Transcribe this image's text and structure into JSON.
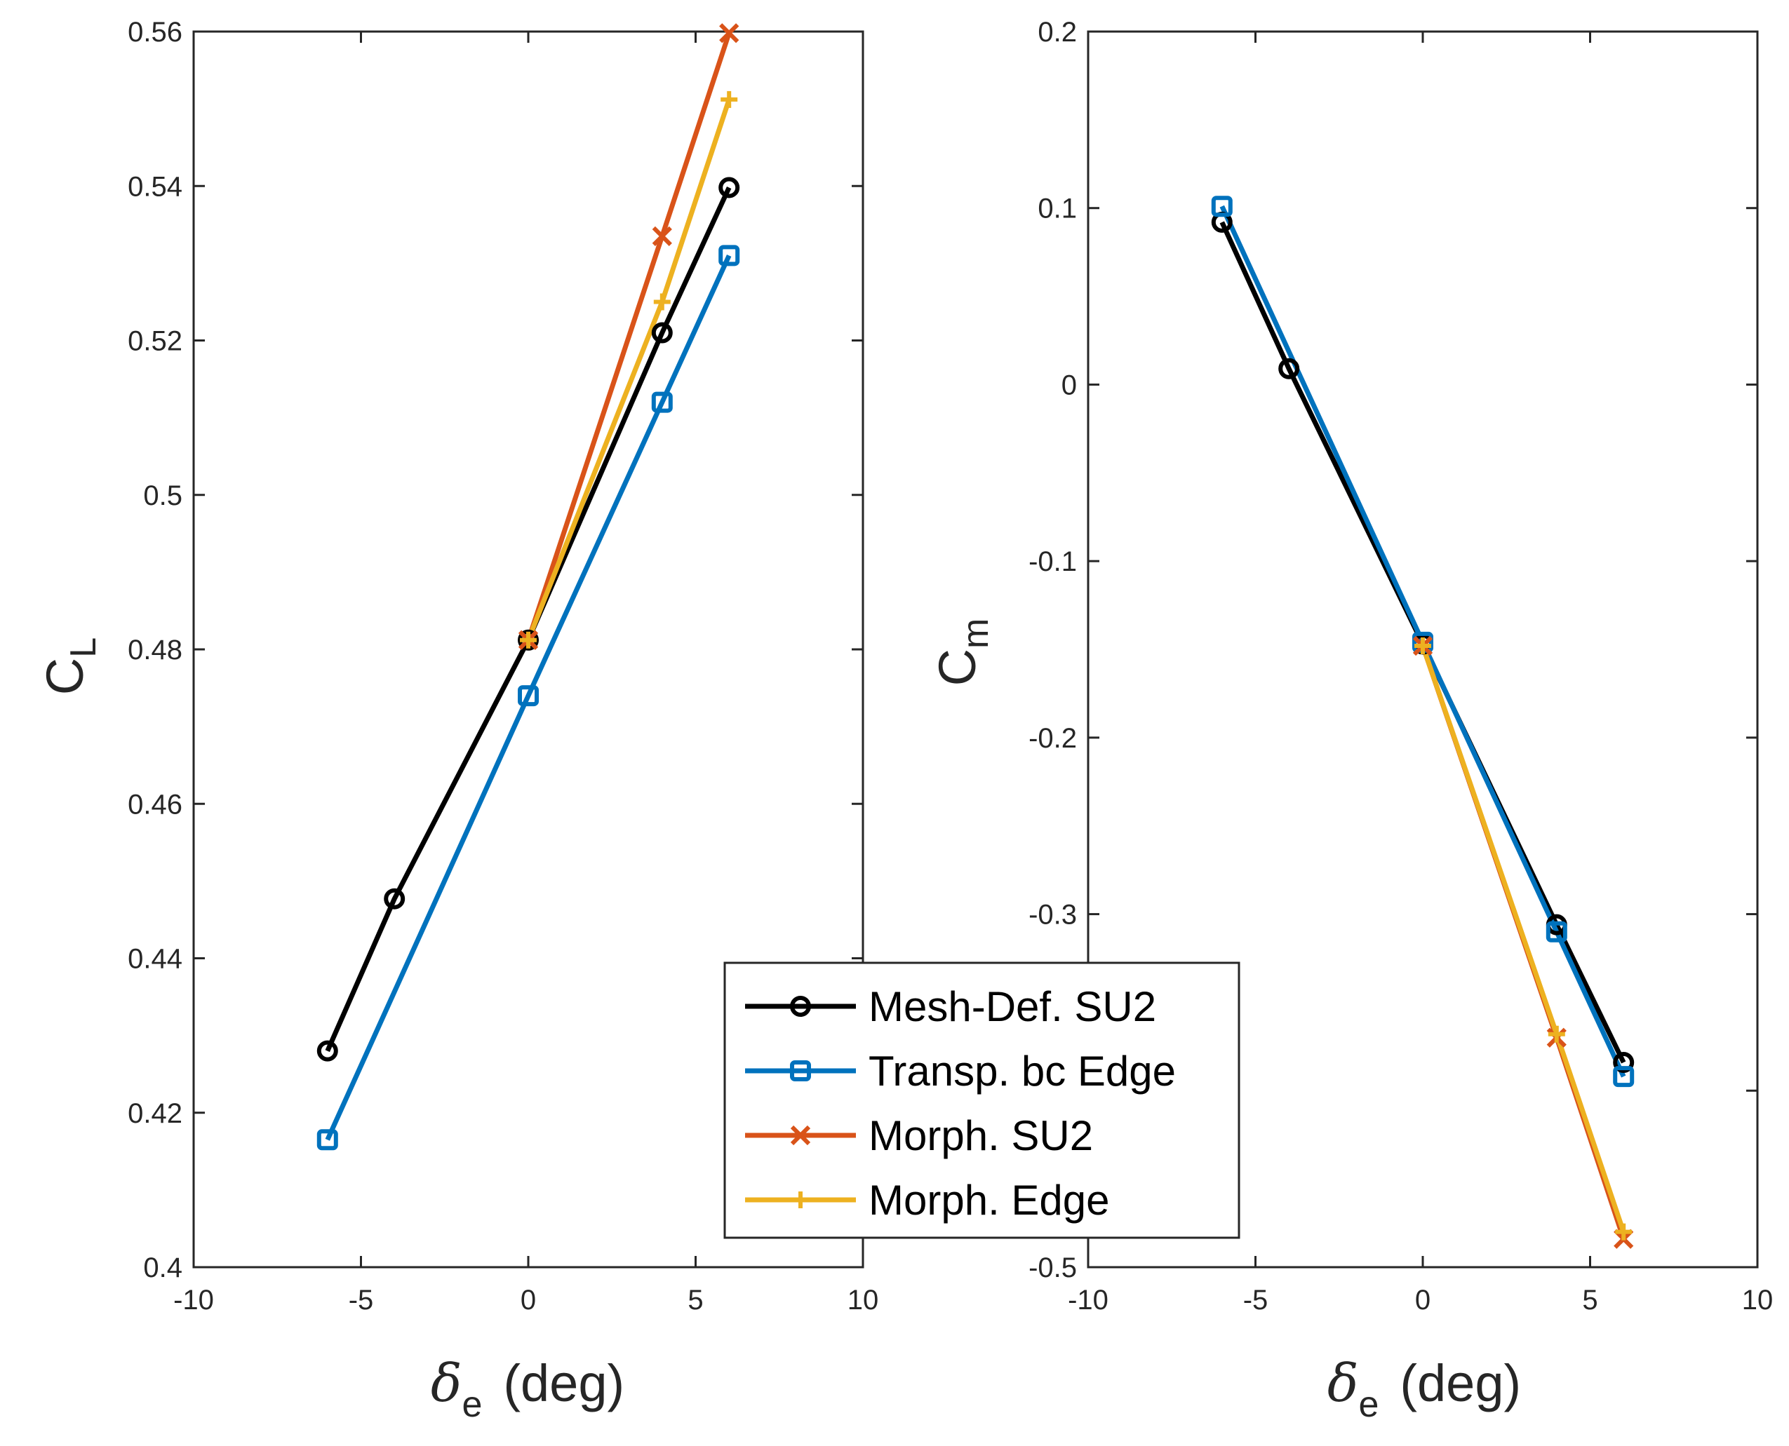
{
  "chart_data": [
    {
      "type": "line",
      "panel": "left",
      "ylabel": "C",
      "ylabel_sub": "L",
      "xlabel": "δ",
      "xlabel_sub": "e",
      "xlabel_unit": "(deg)",
      "xlim": [
        -10,
        10
      ],
      "ylim": [
        0.4,
        0.56
      ],
      "xticks": [
        -10,
        -5,
        0,
        5,
        10
      ],
      "xtick_labels": [
        "-10",
        "-5",
        "0",
        "5",
        "10"
      ],
      "yticks": [
        0.4,
        0.42,
        0.44,
        0.46,
        0.48,
        0.5,
        0.52,
        0.54,
        0.56
      ],
      "ytick_labels": [
        "0.4",
        "0.42",
        "0.44",
        "0.46",
        "0.48",
        "0.5",
        "0.52",
        "0.54",
        "0.56"
      ],
      "grid": false,
      "series": [
        {
          "name": "Mesh-Def. SU2",
          "color": "#000000",
          "marker": "circle",
          "x": [
            -6,
            -4,
            0,
            4,
            6
          ],
          "y": [
            0.428,
            0.4477,
            0.4812,
            0.521,
            0.5398
          ]
        },
        {
          "name": "Transp. bc Edge",
          "color": "#0072BD",
          "marker": "square",
          "x": [
            -6,
            0,
            4,
            6
          ],
          "y": [
            0.4165,
            0.474,
            0.512,
            0.531
          ]
        },
        {
          "name": "Morph. SU2",
          "color": "#D95319",
          "marker": "x",
          "x": [
            0,
            4,
            6
          ],
          "y": [
            0.4812,
            0.5335,
            0.5598
          ]
        },
        {
          "name": "Morph. Edge",
          "color": "#EDB120",
          "marker": "plus",
          "x": [
            0,
            4,
            6
          ],
          "y": [
            0.4812,
            0.525,
            0.5512
          ]
        }
      ]
    },
    {
      "type": "line",
      "panel": "right",
      "ylabel": "C",
      "ylabel_sub": "m",
      "xlabel": "δ",
      "xlabel_sub": "e",
      "xlabel_unit": "(deg)",
      "xlim": [
        -10,
        10
      ],
      "ylim": [
        -0.5,
        0.2
      ],
      "xticks": [
        -10,
        -5,
        0,
        5,
        10
      ],
      "xtick_labels": [
        "-10",
        "-5",
        "0",
        "5",
        "10"
      ],
      "yticks": [
        -0.5,
        -0.4,
        -0.3,
        -0.2,
        -0.1,
        0,
        0.1,
        0.2
      ],
      "ytick_labels": [
        "-0.5",
        "",
        "-0.3",
        "-0.2",
        "-0.1",
        "0",
        "0.1",
        "0.2"
      ],
      "grid": false,
      "series": [
        {
          "name": "Mesh-Def. SU2",
          "color": "#000000",
          "marker": "circle",
          "x": [
            -6,
            -4,
            0,
            4,
            6
          ],
          "y": [
            0.092,
            0.009,
            -0.147,
            -0.306,
            -0.384
          ]
        },
        {
          "name": "Transp. bc Edge",
          "color": "#0072BD",
          "marker": "square",
          "x": [
            -6,
            0,
            4,
            6
          ],
          "y": [
            0.101,
            -0.146,
            -0.31,
            -0.392
          ]
        },
        {
          "name": "Morph. SU2",
          "color": "#D95319",
          "marker": "x",
          "x": [
            0,
            4,
            6
          ],
          "y": [
            -0.148,
            -0.37,
            -0.484
          ]
        },
        {
          "name": "Morph. Edge",
          "color": "#EDB120",
          "marker": "plus",
          "x": [
            0,
            4,
            6
          ],
          "y": [
            -0.148,
            -0.368,
            -0.48
          ]
        }
      ]
    }
  ],
  "legend": {
    "placement": "bottom-center",
    "entries": [
      {
        "label": "Mesh-Def. SU2",
        "color": "#000000",
        "marker": "circle"
      },
      {
        "label": "Transp. bc Edge",
        "color": "#0072BD",
        "marker": "square"
      },
      {
        "label": "Morph. SU2",
        "color": "#D95319",
        "marker": "x"
      },
      {
        "label": "Morph. Edge",
        "color": "#EDB120",
        "marker": "plus"
      }
    ]
  }
}
